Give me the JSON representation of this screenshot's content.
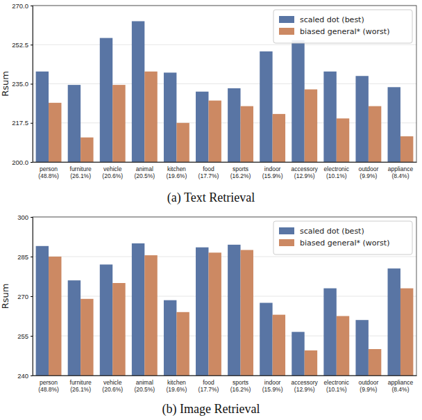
{
  "chart_data": [
    {
      "type": "bar",
      "title": "(a) Text Retrieval",
      "y_label": "Rsum",
      "categories": [
        "person\n(48.8%)",
        "furniture\n(26.1%)",
        "vehicle\n(20.6%)",
        "animal\n(20.5%)",
        "kitchen\n(19.6%)",
        "food\n(17.7%)",
        "sports\n(16.2%)",
        "indoor\n(15.9%)",
        "accessory\n(12.9%)",
        "electronic\n(10.1%)",
        "outdoor\n(9.9%)",
        "appliance\n(8.4%)"
      ],
      "series": [
        {
          "name": "scaled dot (best)",
          "color": "#5975a4",
          "values": [
            240.5,
            234.5,
            255.5,
            263,
            240,
            231.5,
            233,
            249.5,
            254.5,
            240.5,
            238.5,
            233.5
          ]
        },
        {
          "name": "biased general* (worst)",
          "color": "#cc8963",
          "values": [
            226.5,
            211,
            234.5,
            240.5,
            217.5,
            227.5,
            225,
            221.5,
            232.5,
            219.5,
            225,
            211.5
          ]
        }
      ],
      "ylim": [
        200,
        270
      ],
      "yticks": [
        {
          "value": 200,
          "label": "200.0"
        },
        217.5,
        {
          "value": 235,
          "label": "235.0"
        },
        252.5,
        {
          "value": 270,
          "label": "270.0"
        }
      ],
      "grid": true,
      "legend": "upper right"
    },
    {
      "type": "bar",
      "title": "(b) Image Retrieval",
      "y_label": "Rsum",
      "categories": [
        "person\n(48.8%)",
        "furniture\n(26.1%)",
        "vehicle\n(20.6%)",
        "animal\n(20.5%)",
        "kitchen\n(19.6%)",
        "food\n(17.7%)",
        "sports\n(16.2%)",
        "indoor\n(15.9%)",
        "accessory\n(12.9%)",
        "electronic\n(10.1%)",
        "outdoor\n(9.9%)",
        "appliance\n(8.4%)"
      ],
      "series": [
        {
          "name": "scaled dot (best)",
          "color": "#5975a4",
          "values": [
            289,
            276,
            282,
            290,
            268.5,
            288.5,
            289.5,
            267.5,
            256.5,
            273,
            261,
            280.5
          ]
        },
        {
          "name": "biased general* (worst)",
          "color": "#cc8963",
          "values": [
            285,
            269,
            275,
            285.5,
            264,
            286.5,
            287.5,
            263,
            249.5,
            262.5,
            250,
            273
          ]
        }
      ],
      "ylim": [
        240,
        300
      ],
      "yticks": [
        240,
        255,
        270,
        285,
        300
      ],
      "grid": true,
      "legend": "upper right"
    }
  ]
}
